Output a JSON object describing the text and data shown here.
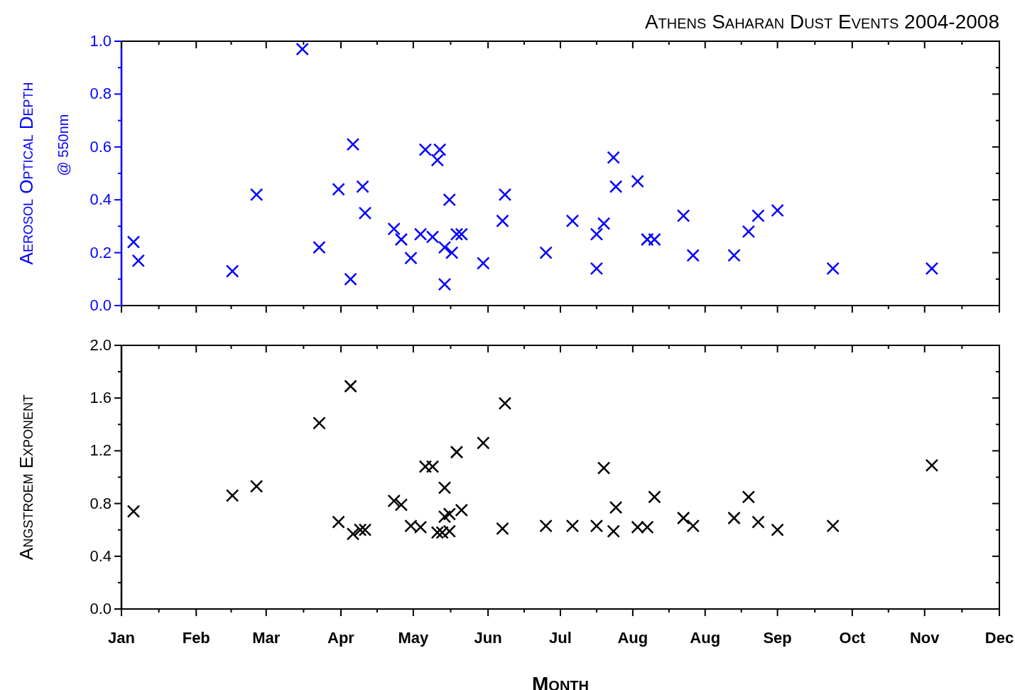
{
  "chart_data": [
    {
      "type": "scatter",
      "title": "Athens Saharan Dust Events 2004-2008",
      "ylabel": "Aerosol Optical Depth\n@ 550nm",
      "marker": "cross",
      "tick_labels": "y",
      "xlim": [
        "--01-01",
        "--12-31"
      ],
      "xticks": [
        {
          "value": "--01-01",
          "label": null
        },
        {
          "value": "--02-01",
          "label": null
        },
        {
          "value": "--03-02",
          "label": null
        },
        {
          "value": "--04-02",
          "label": null
        },
        {
          "value": "--05-02",
          "label": null
        },
        {
          "value": "--06-02",
          "label": null
        },
        {
          "value": "--07-02",
          "label": null
        },
        {
          "value": "--08-01",
          "label": null
        },
        {
          "value": "--08-31",
          "label": null
        },
        {
          "value": "--09-30",
          "label": null
        },
        {
          "value": "--10-31",
          "label": null
        },
        {
          "value": "--11-30",
          "label": null
        },
        {
          "value": "--12-31",
          "label": null
        }
      ],
      "ylim": [
        0,
        1
      ],
      "yticks": [
        {
          "value": 0,
          "label": "0.0"
        },
        {
          "value": 0.1,
          "label": null
        },
        {
          "value": 0.2,
          "label": "0.2"
        },
        {
          "value": 0.3,
          "label": null
        },
        {
          "value": 0.4,
          "label": "0.4"
        },
        {
          "value": 0.5,
          "label": null
        },
        {
          "value": 0.6,
          "label": "0.6"
        },
        {
          "value": 0.7,
          "label": null
        },
        {
          "value": 0.8,
          "label": "0.8"
        },
        {
          "value": 0.9,
          "label": null
        },
        {
          "value": 1,
          "label": "1.0"
        }
      ],
      "series": [
        {
          "color": "#0000ff",
          "x": [
            "--01-06",
            "--01-08",
            "--02-16",
            "--02-26",
            "--03-17",
            "--03-24",
            "--04-01",
            "--04-06",
            "--04-07",
            "--04-11",
            "--04-12",
            "--04-24",
            "--04-27",
            "--05-01",
            "--05-05",
            "--05-07",
            "--05-10",
            "--05-13",
            "--05-12",
            "--05-15",
            "--05-17",
            "--05-15",
            "--05-18",
            "--05-20",
            "--05-22",
            "--05-31",
            "--06-08",
            "--06-09",
            "--06-26",
            "--07-07",
            "--07-17",
            "--07-17",
            "--07-20",
            "--07-24",
            "--07-25",
            "--08-03",
            "--08-07",
            "--08-10",
            "--08-22",
            "--08-26",
            "--09-12",
            "--09-18",
            "--09-22",
            "--09-30",
            "--10-23",
            "--12-03"
          ],
          "values": [
            0.24,
            0.17,
            0.13,
            0.42,
            0.97,
            0.22,
            0.44,
            0.1,
            0.61,
            0.45,
            0.35,
            0.29,
            0.25,
            0.18,
            0.27,
            0.59,
            0.26,
            0.59,
            0.55,
            0.22,
            0.4,
            0.08,
            0.2,
            0.27,
            0.27,
            0.16,
            0.32,
            0.42,
            0.2,
            0.32,
            0.27,
            0.14,
            0.31,
            0.56,
            0.45,
            0.47,
            0.25,
            0.25,
            0.34,
            0.19,
            0.19,
            0.28,
            0.34,
            0.36,
            0.14,
            0.14
          ]
        }
      ]
    },
    {
      "type": "scatter",
      "xlabel": "Month",
      "ylabel": "Angstroem Exponent",
      "marker": "cross",
      "xlim": [
        "--01-01",
        "--12-31"
      ],
      "xticks": [
        {
          "value": "--01-01",
          "label": "Jan"
        },
        {
          "value": "--02-01",
          "label": "Feb"
        },
        {
          "value": "--03-02",
          "label": "Mar"
        },
        {
          "value": "--04-02",
          "label": "Apr"
        },
        {
          "value": "--05-02",
          "label": "May"
        },
        {
          "value": "--06-02",
          "label": "Jun"
        },
        {
          "value": "--07-02",
          "label": "Jul"
        },
        {
          "value": "--08-01",
          "label": "Aug"
        },
        {
          "value": "--08-31",
          "label": "Aug"
        },
        {
          "value": "--09-30",
          "label": "Sep"
        },
        {
          "value": "--10-31",
          "label": "Oct"
        },
        {
          "value": "--11-30",
          "label": "Nov"
        },
        {
          "value": "--12-31",
          "label": "Dec"
        }
      ],
      "ylim": [
        0,
        2
      ],
      "yticks": [
        {
          "value": 0,
          "label": "0.0"
        },
        {
          "value": 0.2,
          "label": null
        },
        {
          "value": 0.4,
          "label": "0.4"
        },
        {
          "value": 0.6,
          "label": null
        },
        {
          "value": 0.8,
          "label": "0.8"
        },
        {
          "value": 1.0,
          "label": null
        },
        {
          "value": 1.2,
          "label": "1.2"
        },
        {
          "value": 1.4,
          "label": null
        },
        {
          "value": 1.6,
          "label": "1.6"
        },
        {
          "value": 1.8,
          "label": null
        },
        {
          "value": 2,
          "label": "2.0"
        }
      ],
      "series": [
        {
          "color": "#000000",
          "x": [
            "--01-06",
            "--02-16",
            "--02-26",
            "--03-24",
            "--04-01",
            "--04-06",
            "--04-07",
            "--04-10",
            "--04-12",
            "--04-24",
            "--04-27",
            "--05-01",
            "--05-05",
            "--05-07",
            "--05-10",
            "--05-12",
            "--05-14",
            "--05-15",
            "--05-15",
            "--05-17",
            "--05-17",
            "--05-20",
            "--05-22",
            "--05-31",
            "--06-08",
            "--06-09",
            "--06-26",
            "--07-07",
            "--07-17",
            "--07-20",
            "--07-24",
            "--07-25",
            "--08-03",
            "--08-07",
            "--08-10",
            "--08-22",
            "--08-26",
            "--09-12",
            "--09-18",
            "--09-22",
            "--09-30",
            "--10-23",
            "--12-03"
          ],
          "values": [
            0.74,
            0.86,
            0.93,
            1.41,
            0.66,
            1.69,
            0.57,
            0.6,
            0.6,
            0.82,
            0.79,
            0.63,
            0.62,
            1.08,
            1.08,
            0.58,
            0.58,
            0.7,
            0.92,
            0.59,
            0.72,
            1.19,
            0.75,
            1.26,
            0.61,
            1.56,
            0.63,
            0.63,
            0.63,
            1.07,
            0.59,
            0.77,
            0.62,
            0.62,
            0.85,
            0.69,
            0.63,
            0.69,
            0.85,
            0.66,
            0.6,
            0.63,
            1.09
          ]
        }
      ]
    }
  ]
}
